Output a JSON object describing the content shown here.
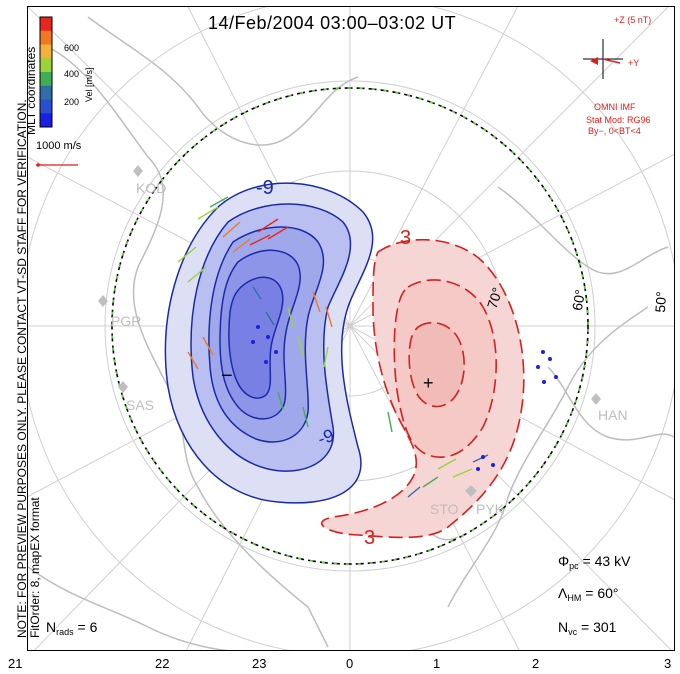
{
  "title": "14/Feb/2004 03:00–03:02 UT",
  "colorbar": {
    "ticks": [
      "600",
      "400",
      "200"
    ],
    "label": "Vel [m/s]",
    "colors": [
      "#e8261c",
      "#f07820",
      "#f2b13a",
      "#9cd33a",
      "#3fae54",
      "#2f6fa6",
      "#2a4fd0",
      "#1a1fe6"
    ]
  },
  "coord_label": "MLT coordinates",
  "scale_vector_label": "1000 m/s",
  "imf": {
    "z_label": "+Z (5 nT)",
    "y_label": "+Y",
    "source": "OMNI IMF",
    "model": "Stat Mod: RG96",
    "condition": "By−, 0<BT<4"
  },
  "note_lines": [
    "NOTE: FOR PREVIEW PURPOSES ONLY. PLEASE CONTACT VT-SD STAFF FOR VERIFICATION.",
    "FitOrder: 8, mapEX format"
  ],
  "latitude_labels": [
    "70°",
    "60°",
    "50°"
  ],
  "station_labels": [
    "KOD",
    "PGR",
    "SAS",
    "STO",
    "PYK",
    "HAN"
  ],
  "contours": {
    "negative_level_top": "-9",
    "negative_level_bottom": "-9",
    "negative_min_mark": "−",
    "positive_level_top": "3",
    "positive_level_bottom": "3",
    "positive_max_mark": "+"
  },
  "stats": {
    "phi_symbol": "Φ",
    "phi_sub": "pc",
    "phi_value": "= 43 kV",
    "lambda_symbol": "Λ",
    "lambda_sub": "HM",
    "lambda_value": "= 60°",
    "nvc_symbol": "N",
    "nvc_sub": "vc",
    "nvc_value": "= 301",
    "nrads_symbol": "N",
    "nrads_sub": "rads",
    "nrads_value": "= 6"
  },
  "mlt_ticks": [
    "21",
    "22",
    "23",
    "0",
    "1",
    "2",
    "3"
  ],
  "colors": {
    "negative_fill": "#c8cdf0",
    "negative_core": "#6f78e0",
    "negative_line": "#1b2aa8",
    "positive_fill": "#f6d6d4",
    "positive_line": "#d42020",
    "coast": "#bdbdbd",
    "hm_boundary_green": "#6ad14a"
  }
}
